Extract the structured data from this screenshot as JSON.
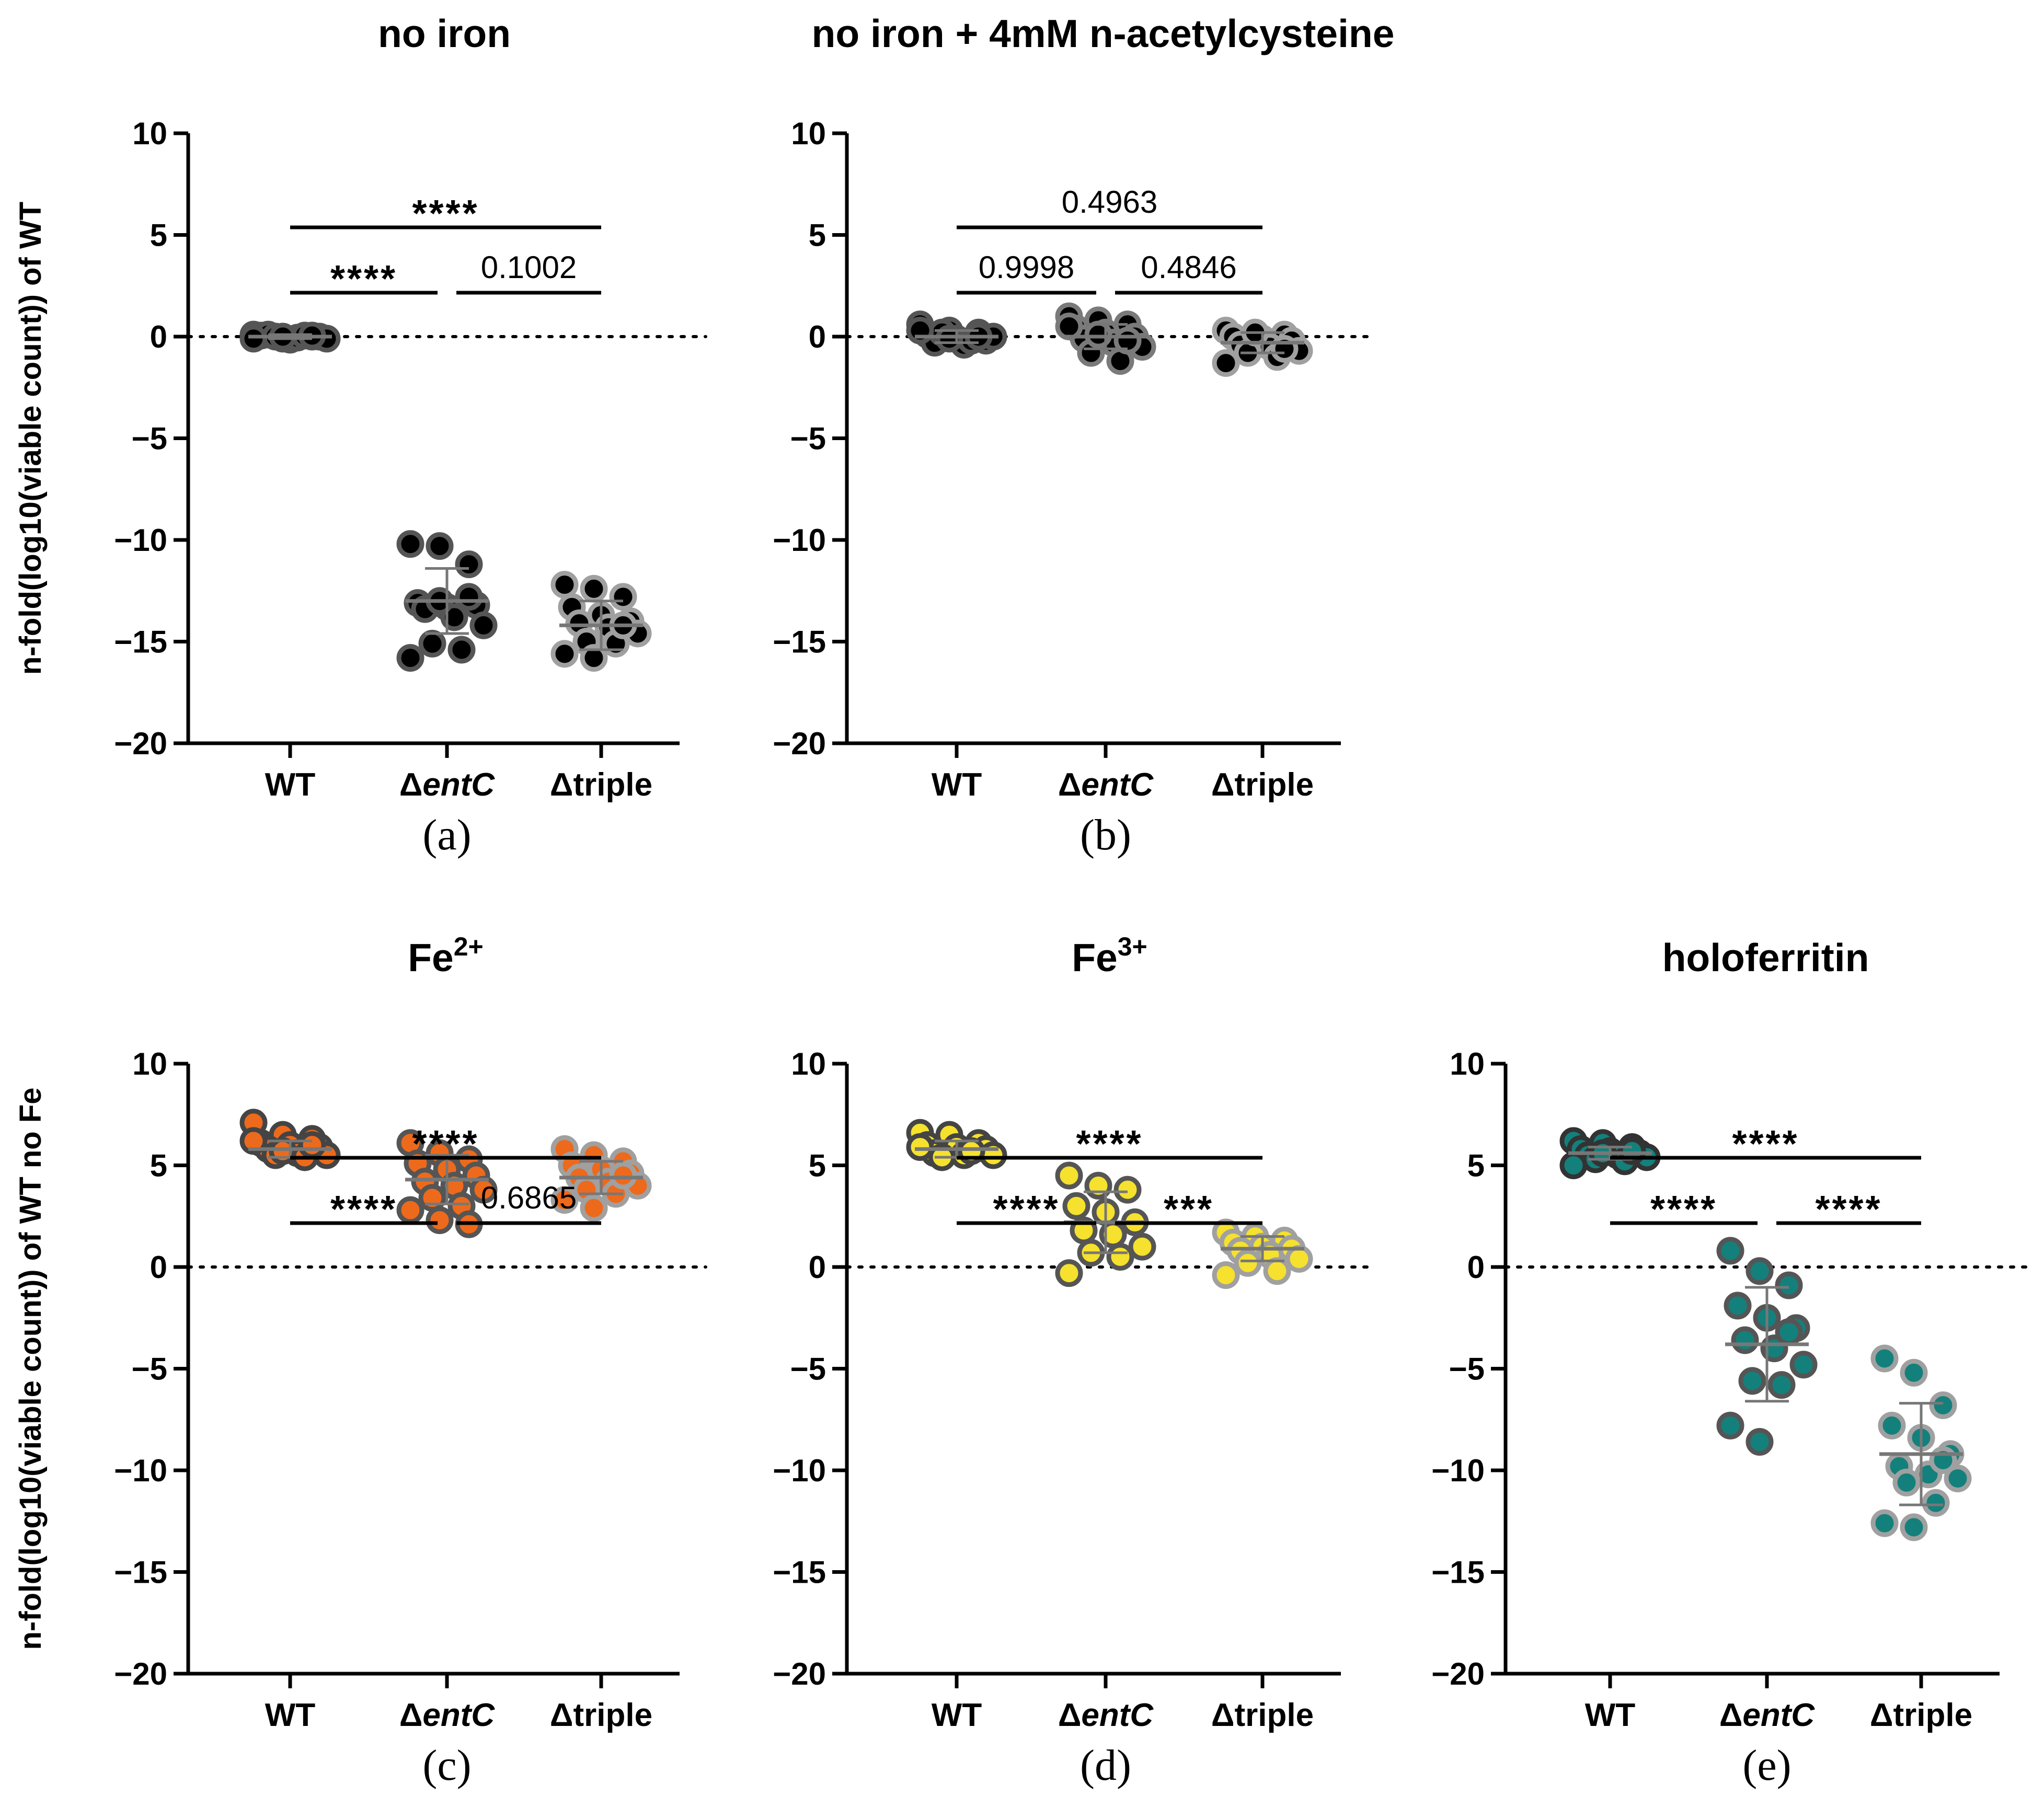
{
  "chart_data": [
    {
      "id": "a",
      "type": "scatter",
      "panel_label": "(a)",
      "title": "no iron",
      "ylabel": "n-fold(log10(viable count)) of WT",
      "ylim": [
        -20,
        10
      ],
      "yticks": [
        10,
        5,
        0,
        -5,
        -10,
        -15,
        -20
      ],
      "ytick_labels": [
        "10",
        "5",
        "0",
        "−5",
        "−10",
        "−15",
        "−20"
      ],
      "reference_line": 0,
      "categories": [
        "WT",
        "ΔentC",
        "Δtriple"
      ],
      "category_parts": [
        [
          "WT",
          ""
        ],
        [
          "Δ",
          "entC"
        ],
        [
          "Δtriple",
          ""
        ]
      ],
      "series": [
        {
          "name": "WT",
          "fill": "#000000",
          "stroke": "#555555",
          "mean": 0.0,
          "sd": 0.1,
          "values": [
            0.1,
            -0.1,
            0.0,
            0.05,
            -0.15,
            0.0,
            0.1,
            -0.05,
            -0.1,
            0.0,
            0.05,
            -0.1,
            0.0,
            0.05
          ]
        },
        {
          "name": "ΔentC",
          "fill": "#000000",
          "stroke": "#555555",
          "mean": -13.0,
          "sd": 1.6,
          "values": [
            -10.2,
            -10.3,
            -11.2,
            -13.1,
            -13.3,
            -13.2,
            -13.4,
            -13.8,
            -14.2,
            -15.1,
            -15.4,
            -15.8,
            -13.0,
            -12.8
          ]
        },
        {
          "name": "Δtriple",
          "fill": "#000000",
          "stroke": "#a0a0a0",
          "mean": -14.2,
          "sd": 1.2,
          "values": [
            -12.2,
            -12.4,
            -12.8,
            -13.3,
            -13.7,
            -14.0,
            -14.1,
            -14.3,
            -14.6,
            -15.0,
            -15.1,
            -15.6,
            -15.8,
            -14.2
          ]
        }
      ],
      "comparisons": [
        {
          "from": 0,
          "to": 2,
          "label": "****",
          "level": 1
        },
        {
          "from": 0,
          "to": 1,
          "label": "****",
          "level": 0
        },
        {
          "from": 1,
          "to": 2,
          "label": "0.1002",
          "level": 0
        }
      ]
    },
    {
      "id": "b",
      "type": "scatter",
      "panel_label": "(b)",
      "title": "no iron +  4mM n-acetylcysteine",
      "ylabel": "",
      "ylim": [
        -20,
        10
      ],
      "yticks": [
        10,
        5,
        0,
        -5,
        -10,
        -15,
        -20
      ],
      "ytick_labels": [
        "10",
        "5",
        "0",
        "−5",
        "−10",
        "−15",
        "−20"
      ],
      "reference_line": 0,
      "categories": [
        "WT",
        "ΔentC",
        "Δtriple"
      ],
      "category_parts": [
        [
          "WT",
          ""
        ],
        [
          "Δ",
          "entC"
        ],
        [
          "Δtriple",
          ""
        ]
      ],
      "series": [
        {
          "name": "WT",
          "fill": "#000000",
          "stroke": "#555555",
          "mean": 0.0,
          "sd": 0.3,
          "values": [
            0.6,
            0.3,
            0.2,
            0.1,
            -0.1,
            -0.2,
            -0.3,
            -0.4,
            0.0,
            0.2,
            -0.2,
            0.3,
            -0.1,
            0.0
          ]
        },
        {
          "name": "ΔentC",
          "fill": "#000000",
          "stroke": "#7a7a7a",
          "mean": 0.0,
          "sd": 0.6,
          "values": [
            1.0,
            0.8,
            0.6,
            0.4,
            0.2,
            0.0,
            -0.1,
            -0.3,
            -0.5,
            -0.8,
            -1.2,
            0.5,
            0.1,
            -0.2
          ]
        },
        {
          "name": "Δtriple",
          "fill": "#000000",
          "stroke": "#a0a0a0",
          "mean": -0.3,
          "sd": 0.5,
          "values": [
            0.3,
            0.2,
            0.1,
            0.0,
            -0.1,
            -0.2,
            -0.4,
            -0.5,
            -0.7,
            -0.8,
            -1.0,
            -1.3,
            0.2,
            -0.6
          ]
        }
      ],
      "comparisons": [
        {
          "from": 0,
          "to": 2,
          "label": "0.4963",
          "level": 1
        },
        {
          "from": 0,
          "to": 1,
          "label": "0.9998",
          "level": 0
        },
        {
          "from": 1,
          "to": 2,
          "label": "0.4846",
          "level": 0
        }
      ]
    },
    {
      "id": "c",
      "type": "scatter",
      "panel_label": "(c)",
      "title": "Fe",
      "title_sup": "2+",
      "ylabel": "n-fold(log10(viable count)) of WT no Fe",
      "ylim": [
        -20,
        10
      ],
      "yticks": [
        10,
        5,
        0,
        -5,
        -10,
        -15,
        -20
      ],
      "ytick_labels": [
        "10",
        "5",
        "0",
        "−5",
        "−10",
        "−15",
        "−20"
      ],
      "reference_line": 0,
      "categories": [
        "WT",
        "ΔentC",
        "Δtriple"
      ],
      "category_parts": [
        [
          "WT",
          ""
        ],
        [
          "Δ",
          "entC"
        ],
        [
          "Δtriple",
          ""
        ]
      ],
      "series": [
        {
          "name": "WT",
          "fill": "#ed6a1c",
          "stroke": "#444444",
          "mean": 5.8,
          "sd": 0.4,
          "values": [
            7.1,
            6.5,
            6.3,
            6.1,
            6.0,
            5.9,
            5.8,
            5.6,
            5.5,
            5.5,
            5.4,
            6.2,
            5.7,
            6.0
          ]
        },
        {
          "name": "ΔentC",
          "fill": "#ed6a1c",
          "stroke": "#555555",
          "mean": 4.3,
          "sd": 1.2,
          "values": [
            6.1,
            5.6,
            5.3,
            5.1,
            4.8,
            4.5,
            4.2,
            4.0,
            3.8,
            3.4,
            3.0,
            2.8,
            2.3,
            2.1
          ]
        },
        {
          "name": "Δtriple",
          "fill": "#ed6a1c",
          "stroke": "#a0a0a0",
          "mean": 4.4,
          "sd": 0.8,
          "values": [
            5.8,
            5.5,
            5.2,
            5.0,
            4.8,
            4.6,
            4.4,
            4.2,
            4.0,
            3.8,
            3.6,
            3.3,
            2.9,
            4.5
          ]
        }
      ],
      "comparisons": [
        {
          "from": 0,
          "to": 2,
          "label": "****",
          "level": 1
        },
        {
          "from": 0,
          "to": 1,
          "label": "****",
          "level": 0
        },
        {
          "from": 1,
          "to": 2,
          "label": "0.6865",
          "level": 0
        }
      ]
    },
    {
      "id": "d",
      "type": "scatter",
      "panel_label": "(d)",
      "title": "Fe",
      "title_sup": "3+",
      "ylabel": "",
      "ylim": [
        -20,
        10
      ],
      "yticks": [
        10,
        5,
        0,
        -5,
        -10,
        -15,
        -20
      ],
      "ytick_labels": [
        "10",
        "5",
        "0",
        "−5",
        "−10",
        "−15",
        "−20"
      ],
      "reference_line": 0,
      "categories": [
        "WT",
        "ΔentC",
        "Δtriple"
      ],
      "category_parts": [
        [
          "WT",
          ""
        ],
        [
          "Δ",
          "entC"
        ],
        [
          "Δtriple",
          ""
        ]
      ],
      "series": [
        {
          "name": "WT",
          "fill": "#f5e12e",
          "stroke": "#444444",
          "mean": 5.8,
          "sd": 0.4,
          "values": [
            6.6,
            6.5,
            6.1,
            6.0,
            5.9,
            5.8,
            5.6,
            5.5,
            5.5,
            5.4,
            5.7,
            5.9
          ]
        },
        {
          "name": "ΔentC",
          "fill": "#f5e12e",
          "stroke": "#555555",
          "mean": 2.2,
          "sd": 1.5,
          "values": [
            4.5,
            4.0,
            3.8,
            3.0,
            2.7,
            2.2,
            1.8,
            1.6,
            1.0,
            0.7,
            0.5,
            -0.3
          ]
        },
        {
          "name": "Δtriple",
          "fill": "#f5e12e",
          "stroke": "#a0a0a0",
          "mean": 0.9,
          "sd": 0.6,
          "values": [
            1.7,
            1.5,
            1.3,
            1.2,
            1.0,
            0.9,
            0.8,
            0.6,
            0.4,
            0.2,
            -0.2,
            -0.4
          ]
        }
      ],
      "comparisons": [
        {
          "from": 0,
          "to": 2,
          "label": "****",
          "level": 1
        },
        {
          "from": 0,
          "to": 1,
          "label": "****",
          "level": 0
        },
        {
          "from": 1,
          "to": 2,
          "label": "***",
          "level": 0
        }
      ]
    },
    {
      "id": "e",
      "type": "scatter",
      "panel_label": "(e)",
      "title": "holoferritin",
      "ylabel": "",
      "ylim": [
        -20,
        10
      ],
      "yticks": [
        10,
        5,
        0,
        -5,
        -10,
        -15,
        -20
      ],
      "ytick_labels": [
        "10",
        "5",
        "0",
        "−5",
        "−10",
        "−15",
        "−20"
      ],
      "reference_line": 0,
      "categories": [
        "WT",
        "ΔentC",
        "Δtriple"
      ],
      "category_parts": [
        [
          "WT",
          ""
        ],
        [
          "Δ",
          "entC"
        ],
        [
          "Δtriple",
          ""
        ]
      ],
      "series": [
        {
          "name": "WT",
          "fill": "#14807c",
          "stroke": "#333333",
          "mean": 5.6,
          "sd": 0.3,
          "values": [
            6.2,
            6.1,
            5.9,
            5.8,
            5.7,
            5.6,
            5.5,
            5.5,
            5.4,
            5.3,
            5.2,
            5.0,
            5.6,
            5.7
          ]
        },
        {
          "name": "ΔentC",
          "fill": "#14807c",
          "stroke": "#555555",
          "mean": -3.8,
          "sd": 2.8,
          "values": [
            0.8,
            -0.2,
            -0.9,
            -1.9,
            -2.5,
            -3.0,
            -3.6,
            -4.0,
            -4.8,
            -5.6,
            -5.8,
            -7.8,
            -8.6,
            -3.2
          ]
        },
        {
          "name": "Δtriple",
          "fill": "#14807c",
          "stroke": "#a0a0a0",
          "mean": -9.2,
          "sd": 2.5,
          "values": [
            -4.5,
            -5.2,
            -6.8,
            -7.8,
            -8.4,
            -9.2,
            -9.8,
            -10.2,
            -10.4,
            -10.6,
            -11.6,
            -12.6,
            -12.8,
            -9.5
          ]
        }
      ],
      "comparisons": [
        {
          "from": 0,
          "to": 2,
          "label": "****",
          "level": 1
        },
        {
          "from": 0,
          "to": 1,
          "label": "****",
          "level": 0
        },
        {
          "from": 1,
          "to": 2,
          "label": "****",
          "level": 0
        }
      ]
    }
  ]
}
